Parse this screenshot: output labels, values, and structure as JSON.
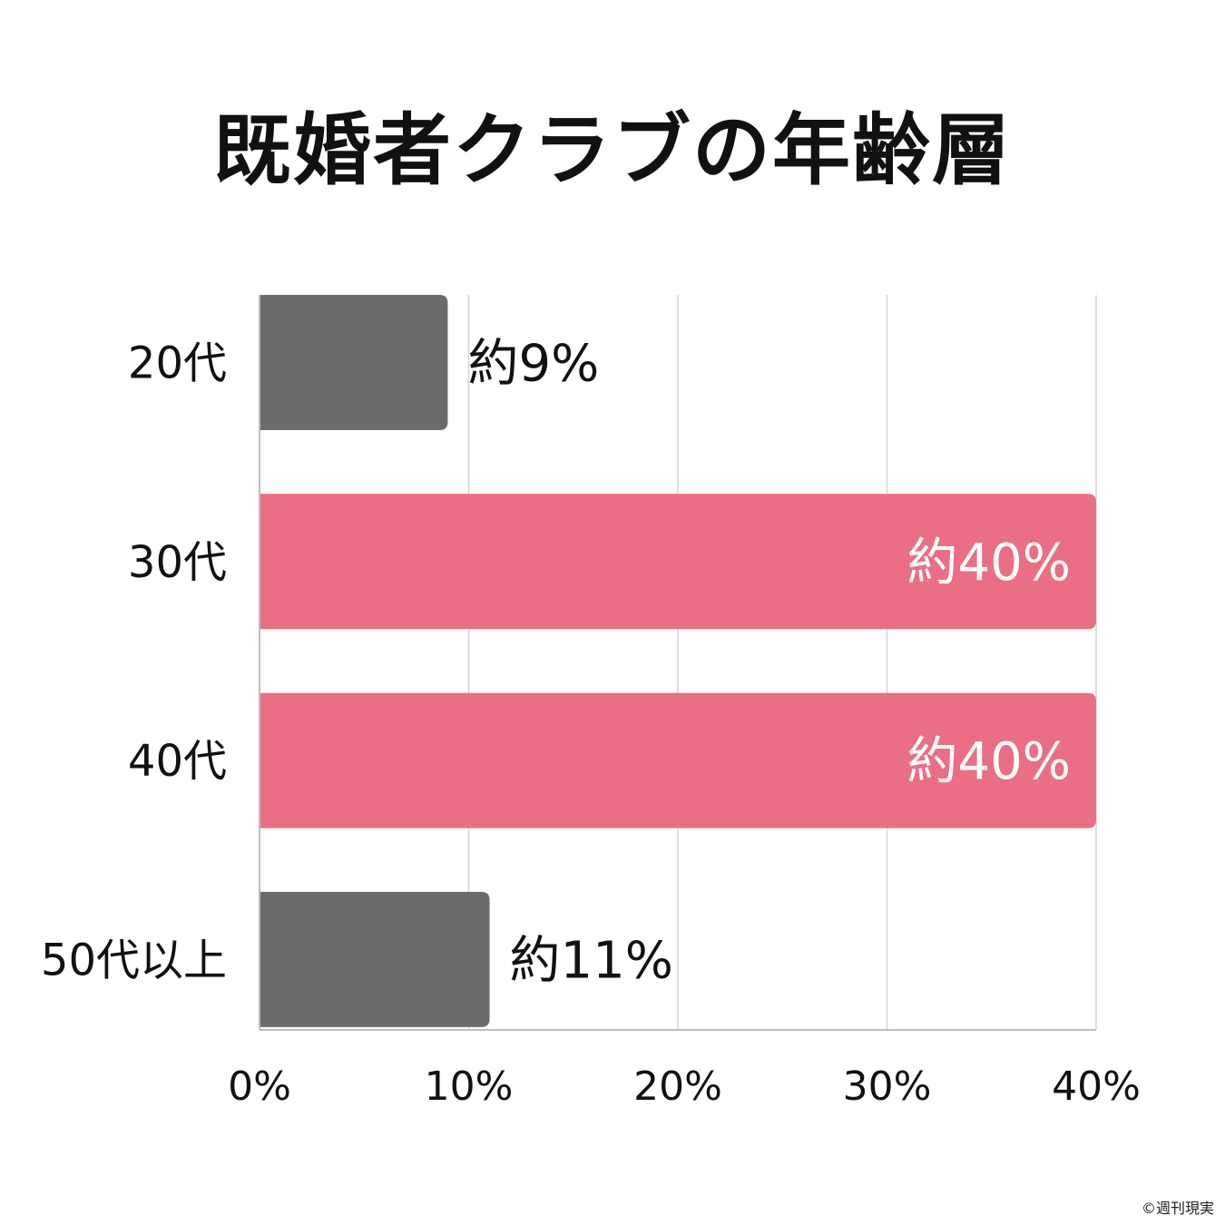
{
  "chart_data": {
    "type": "bar",
    "orientation": "horizontal",
    "title": "既婚者クラブの年齢層",
    "categories": [
      "20代",
      "30代",
      "40代",
      "50代以上"
    ],
    "values": [
      9,
      40,
      40,
      11
    ],
    "data_labels": [
      "約9%",
      "約40%",
      "約40%",
      "約11%"
    ],
    "xlim": [
      0,
      40
    ],
    "x_ticks": [
      0,
      10,
      20,
      30,
      40
    ],
    "x_tick_labels": [
      "0%",
      "10%",
      "20%",
      "30%",
      "40%"
    ],
    "grid": "vertical",
    "legend": "none",
    "colors": {
      "highlight": "#EA6F84",
      "default": "#6B6B6B",
      "grid": "#D6D6D6",
      "axis": "#BDBDBD",
      "label_inside": "#FFFFFF",
      "label_outside": "#111111"
    },
    "highlighted": [
      false,
      true,
      true,
      false
    ]
  },
  "credit": "©週刊現実"
}
